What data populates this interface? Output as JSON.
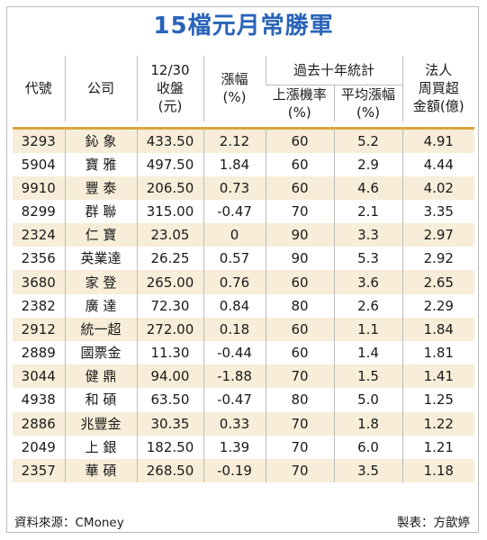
{
  "title": "15檔元月常勝軍",
  "headers": {
    "code": "代號",
    "company": "公司",
    "close_line1": "12/30",
    "close_line2": "收盤",
    "close_line3": "(元)",
    "change_line1": "漲幅",
    "change_line2": "(%)",
    "group": "過去十年統計",
    "uprate_line1": "上漲機率",
    "uprate_line2": "(%)",
    "avgrise_line1": "平均漲幅",
    "avgrise_line2": "(%)",
    "inst_line1": "法人",
    "inst_line2": "周買超",
    "inst_line3": "金額(億)"
  },
  "rows": [
    {
      "code": "3293",
      "company": "鈊 象",
      "close": "433.50",
      "change": "2.12",
      "uprate": "60",
      "avgrise": "5.2",
      "inst": "4.91"
    },
    {
      "code": "5904",
      "company": "寶 雅",
      "close": "497.50",
      "change": "1.84",
      "uprate": "60",
      "avgrise": "2.9",
      "inst": "4.44"
    },
    {
      "code": "9910",
      "company": "豐 泰",
      "close": "206.50",
      "change": "0.73",
      "uprate": "60",
      "avgrise": "4.6",
      "inst": "4.02"
    },
    {
      "code": "8299",
      "company": "群 聯",
      "close": "315.00",
      "change": "-0.47",
      "uprate": "70",
      "avgrise": "2.1",
      "inst": "3.35"
    },
    {
      "code": "2324",
      "company": "仁 寶",
      "close": "23.05",
      "change": "0",
      "uprate": "90",
      "avgrise": "3.3",
      "inst": "2.97"
    },
    {
      "code": "2356",
      "company": "英業達",
      "close": "26.25",
      "change": "0.57",
      "uprate": "90",
      "avgrise": "5.3",
      "inst": "2.92"
    },
    {
      "code": "3680",
      "company": "家 登",
      "close": "265.00",
      "change": "0.76",
      "uprate": "60",
      "avgrise": "3.6",
      "inst": "2.65"
    },
    {
      "code": "2382",
      "company": "廣 達",
      "close": "72.30",
      "change": "0.84",
      "uprate": "80",
      "avgrise": "2.6",
      "inst": "2.29"
    },
    {
      "code": "2912",
      "company": "統一超",
      "close": "272.00",
      "change": "0.18",
      "uprate": "60",
      "avgrise": "1.1",
      "inst": "1.84"
    },
    {
      "code": "2889",
      "company": "國票金",
      "close": "11.30",
      "change": "-0.44",
      "uprate": "60",
      "avgrise": "1.4",
      "inst": "1.81"
    },
    {
      "code": "3044",
      "company": "健 鼎",
      "close": "94.00",
      "change": "-1.88",
      "uprate": "70",
      "avgrise": "1.5",
      "inst": "1.41"
    },
    {
      "code": "4938",
      "company": "和 碩",
      "close": "63.50",
      "change": "-0.47",
      "uprate": "80",
      "avgrise": "5.0",
      "inst": "1.25"
    },
    {
      "code": "2886",
      "company": "兆豐金",
      "close": "30.35",
      "change": "0.33",
      "uprate": "70",
      "avgrise": "1.8",
      "inst": "1.22"
    },
    {
      "code": "2049",
      "company": "上 銀",
      "close": "182.50",
      "change": "1.39",
      "uprate": "70",
      "avgrise": "6.0",
      "inst": "1.21"
    },
    {
      "code": "2357",
      "company": "華 碩",
      "close": "268.50",
      "change": "-0.19",
      "uprate": "70",
      "avgrise": "3.5",
      "inst": "1.18"
    }
  ],
  "footer": {
    "source": "資料來源：CMoney",
    "credit": "製表：方歆婷"
  },
  "colors": {
    "title": "#2a64b8",
    "stripe": "#f7edd8",
    "header_rule": "#d9a640"
  }
}
